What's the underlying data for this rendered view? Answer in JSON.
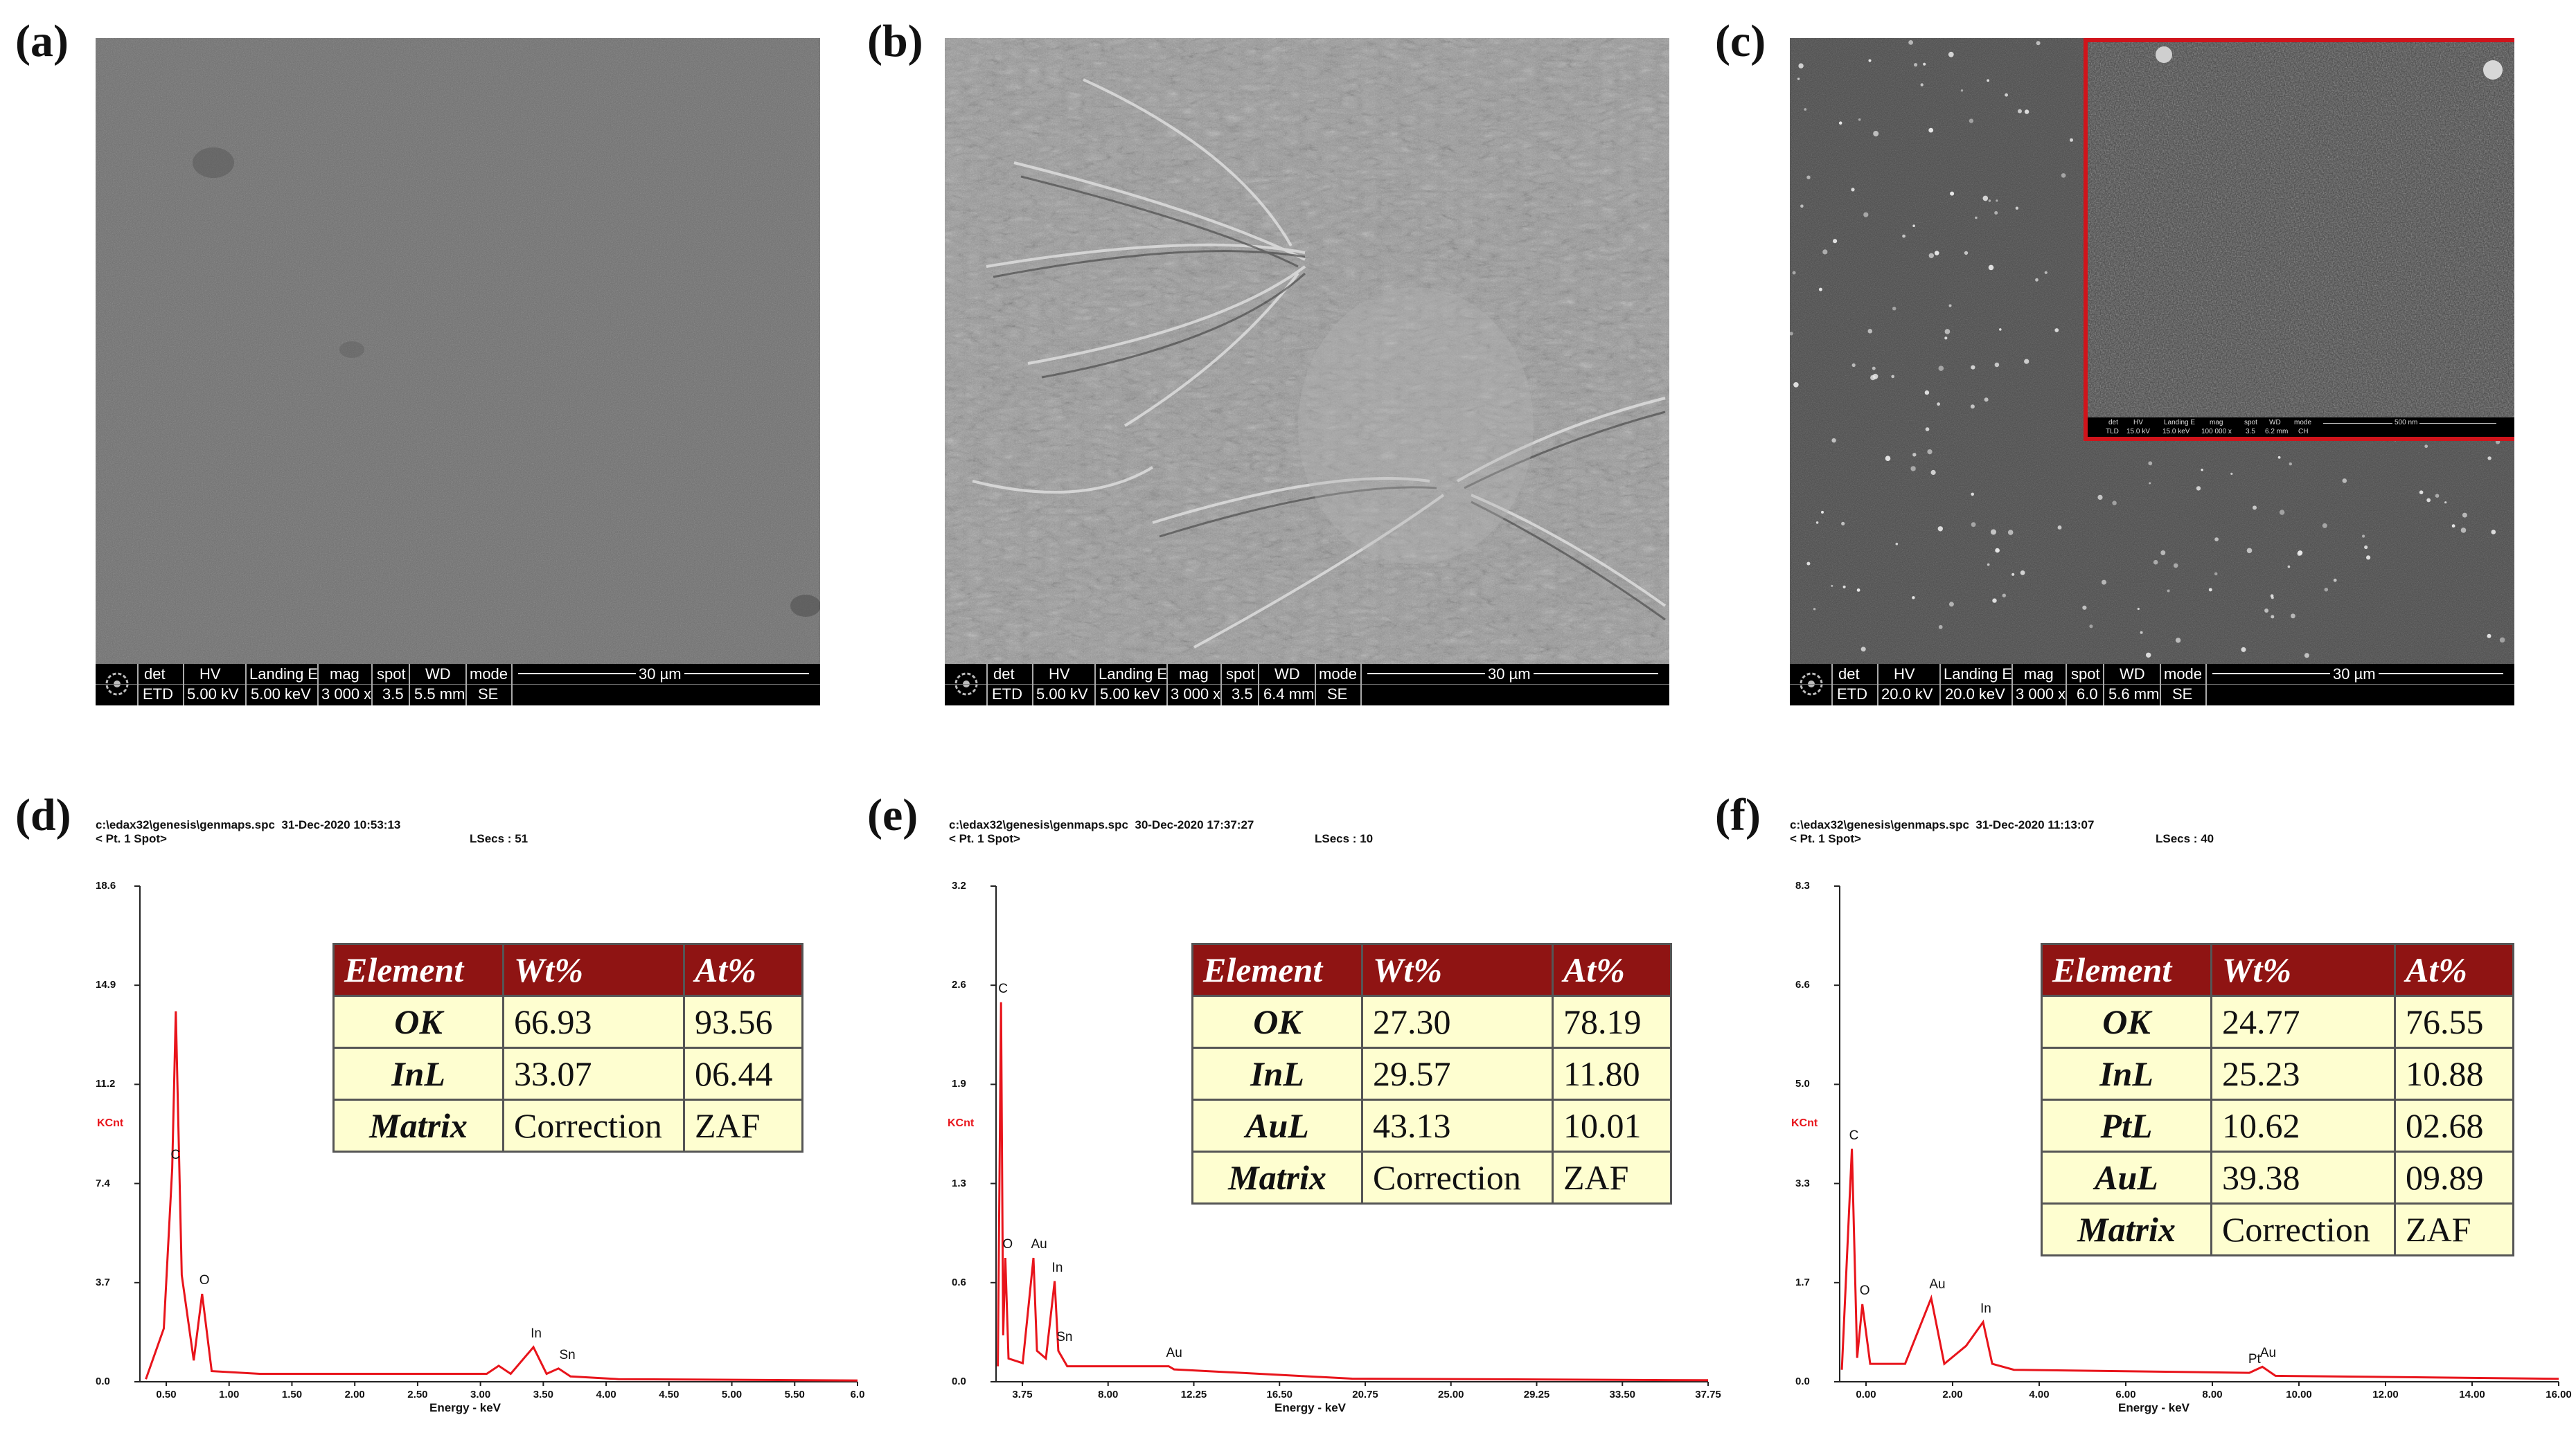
{
  "panel_labels": {
    "a": "(a)",
    "b": "(b)",
    "c": "(c)",
    "d": "(d)",
    "e": "(e)",
    "f": "(f)"
  },
  "sem_headers": {
    "det": "det",
    "hv": "HV",
    "landing": "Landing E",
    "mag": "mag",
    "spot": "spot",
    "wd": "WD",
    "mode": "mode"
  },
  "sem": [
    {
      "det": "ETD",
      "hv": "5.00 kV",
      "landing": "5.00 keV",
      "mag": "3 000 x",
      "spot": "3.5",
      "wd": "5.5 mm",
      "mode": "SE",
      "scale": "30 µm"
    },
    {
      "det": "ETD",
      "hv": "5.00 kV",
      "landing": "5.00 keV",
      "mag": "3 000 x",
      "spot": "3.5",
      "wd": "6.4 mm",
      "mode": "SE",
      "scale": "30 µm"
    },
    {
      "det": "ETD",
      "hv": "20.0 kV",
      "landing": "20.0 keV",
      "mag": "3 000 x",
      "spot": "6.0",
      "wd": "5.6 mm",
      "mode": "SE",
      "scale": "30 µm"
    }
  ],
  "inset": {
    "det": "TLD",
    "hv": "15.0 kV",
    "landing": "15.0 keV",
    "mag": "100 000 x",
    "spot": "3.5",
    "wd": "6.2 mm",
    "mode": "CH",
    "scale": "500 nm"
  },
  "eds": [
    {
      "path": "c:\\edax32\\genesis\\genmaps.spc",
      "date": "31-Dec-2020 10:53:13",
      "pt": "< Pt.  1 Spot>",
      "lsecs": "LSecs : 51",
      "ylabel": "KCnt",
      "xlabel": "Energy - keV",
      "yticks": [
        "18.6",
        "14.9",
        "11.2",
        "7.4",
        "3.7",
        "0.0"
      ],
      "xticks": [
        "0.50",
        "1.00",
        "1.50",
        "2.00",
        "2.50",
        "3.00",
        "3.50",
        "4.00",
        "4.50",
        "5.00",
        "5.50",
        "6.0"
      ]
    },
    {
      "path": "c:\\edax32\\genesis\\genmaps.spc",
      "date": "30-Dec-2020 17:37:27",
      "pt": "< Pt.  1 Spot>",
      "lsecs": "LSecs : 10",
      "ylabel": "KCnt",
      "xlabel": "Energy - keV",
      "yticks": [
        "3.2",
        "2.6",
        "1.9",
        "1.3",
        "0.6",
        "0.0"
      ],
      "xticks": [
        "3.75",
        "8.00",
        "12.25",
        "16.50",
        "20.75",
        "25.00",
        "29.25",
        "33.50",
        "37.75"
      ]
    },
    {
      "path": "c:\\edax32\\genesis\\genmaps.spc",
      "date": "31-Dec-2020 11:13:07",
      "pt": "< Pt.  1 Spot>",
      "lsecs": "LSecs : 40",
      "ylabel": "KCnt",
      "xlabel": "Energy - keV",
      "yticks": [
        "8.3",
        "6.6",
        "5.0",
        "3.3",
        "1.7",
        "0.0"
      ],
      "xticks": [
        "0.00",
        "2.00",
        "4.00",
        "6.00",
        "8.00",
        "10.00",
        "12.00",
        "14.00",
        "16.00"
      ]
    }
  ],
  "chart_data": [
    {
      "type": "line",
      "title": "",
      "xlabel": "Energy - keV",
      "ylabel": "KCnt",
      "xlim": [
        0,
        6.0
      ],
      "ylim": [
        0,
        18.6
      ],
      "series": [
        {
          "values_desc": "",
          "x": [
            0.05,
            0.2,
            0.27,
            0.3,
            0.35,
            0.45,
            0.52,
            0.6,
            1.0,
            2.0,
            2.9,
            3.0,
            3.1,
            3.29,
            3.4,
            3.5,
            3.6,
            4.0,
            6.0
          ],
          "y": [
            0.1,
            2.0,
            8.0,
            13.9,
            4.0,
            0.8,
            3.3,
            0.4,
            0.3,
            0.3,
            0.3,
            0.6,
            0.3,
            1.3,
            0.3,
            0.5,
            0.2,
            0.1,
            0.05
          ]
        }
      ],
      "peak_labels": [
        {
          "text": "C",
          "x": 0.28
        },
        {
          "text": "O",
          "x": 0.52
        },
        {
          "text": "In",
          "x": 3.29
        },
        {
          "text": "Sn",
          "x": 3.53
        }
      ]
    },
    {
      "type": "line",
      "title": "",
      "xlabel": "Energy - keV",
      "ylabel": "KCnt",
      "xlim": [
        0,
        40
      ],
      "ylim": [
        0,
        3.2
      ],
      "series": [
        {
          "values_desc": "",
          "x": [
            0.1,
            0.28,
            0.4,
            0.52,
            0.7,
            1.5,
            2.1,
            2.3,
            2.8,
            3.29,
            3.5,
            4.0,
            9.7,
            10.0,
            20,
            40
          ],
          "y": [
            0.1,
            2.45,
            0.3,
            0.8,
            0.15,
            0.12,
            0.8,
            0.2,
            0.15,
            0.65,
            0.2,
            0.1,
            0.1,
            0.08,
            0.02,
            0.01
          ]
        }
      ],
      "peak_labels": [
        {
          "text": "C",
          "x": 0.28
        },
        {
          "text": "O",
          "x": 0.52
        },
        {
          "text": "Au",
          "x": 2.12
        },
        {
          "text": "In",
          "x": 3.29
        },
        {
          "text": "Sn",
          "x": 3.55
        },
        {
          "text": "Au",
          "x": 9.71
        }
      ]
    },
    {
      "type": "line",
      "title": "",
      "xlabel": "Energy - keV",
      "ylabel": "KCnt",
      "xlim": [
        0,
        16.5
      ],
      "ylim": [
        0,
        8.3
      ],
      "series": [
        {
          "values_desc": "",
          "x": [
            0.05,
            0.28,
            0.4,
            0.52,
            0.7,
            1.5,
            2.1,
            2.4,
            2.9,
            3.29,
            3.5,
            4.0,
            9.4,
            9.7,
            10.0,
            16.5
          ],
          "y": [
            0.2,
            3.9,
            0.4,
            1.3,
            0.3,
            0.3,
            1.4,
            0.3,
            0.6,
            1.0,
            0.3,
            0.2,
            0.15,
            0.25,
            0.1,
            0.05
          ]
        }
      ],
      "peak_labels": [
        {
          "text": "C",
          "x": 0.28
        },
        {
          "text": "O",
          "x": 0.52
        },
        {
          "text": "Au",
          "x": 2.12
        },
        {
          "text": "In",
          "x": 3.29
        },
        {
          "text": "Pt",
          "x": 9.44
        },
        {
          "text": "Au",
          "x": 9.71
        }
      ]
    }
  ],
  "tables": [
    {
      "headers": [
        "Element",
        "Wt%",
        "At%"
      ],
      "rows": [
        [
          "OK",
          "66.93",
          "93.56"
        ],
        [
          "InL",
          "33.07",
          "06.44"
        ],
        [
          "Matrix",
          "Correction",
          "ZAF"
        ]
      ]
    },
    {
      "headers": [
        "Element",
        "Wt%",
        "At%"
      ],
      "rows": [
        [
          "OK",
          "27.30",
          "78.19"
        ],
        [
          "InL",
          "29.57",
          "11.80"
        ],
        [
          "AuL",
          "43.13",
          "10.01"
        ],
        [
          "Matrix",
          "Correction",
          "ZAF"
        ]
      ]
    },
    {
      "headers": [
        "Element",
        "Wt%",
        "At%"
      ],
      "rows": [
        [
          "OK",
          "24.77",
          "76.55"
        ],
        [
          "InL",
          "25.23",
          "10.88"
        ],
        [
          "PtL",
          "10.62",
          "02.68"
        ],
        [
          "AuL",
          "39.38",
          "09.89"
        ],
        [
          "Matrix",
          "Correction",
          "ZAF"
        ]
      ]
    }
  ]
}
